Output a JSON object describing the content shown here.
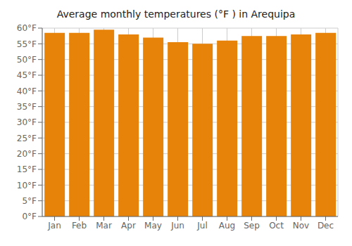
{
  "chart_data": {
    "type": "bar",
    "title": "Average monthly temperatures (°F ) in Arequipa",
    "categories": [
      "Jan",
      "Feb",
      "Mar",
      "Apr",
      "May",
      "Jun",
      "Jul",
      "Aug",
      "Sep",
      "Oct",
      "Nov",
      "Dec"
    ],
    "values": [
      58.5,
      58.5,
      59.5,
      58.0,
      57.0,
      55.5,
      55.0,
      56.0,
      57.5,
      57.5,
      58.0,
      58.5
    ],
    "color": "#E8830A",
    "ylim": [
      0,
      60
    ],
    "yticks": [
      {
        "value": 0,
        "label": "0°F"
      },
      {
        "value": 5,
        "label": "5°F"
      },
      {
        "value": 10,
        "label": "10°F"
      },
      {
        "value": 15,
        "label": "15°F"
      },
      {
        "value": 20,
        "label": "20°F"
      },
      {
        "value": 25,
        "label": "25°F"
      },
      {
        "value": 30,
        "label": "30°F"
      },
      {
        "value": 35,
        "label": "35°F"
      },
      {
        "value": 40,
        "label": "40°F"
      },
      {
        "value": 45,
        "label": "45°F"
      },
      {
        "value": 50,
        "label": "50°F"
      },
      {
        "value": 55,
        "label": "55°F"
      },
      {
        "value": 60,
        "label": "60°F"
      }
    ],
    "grid": true
  }
}
